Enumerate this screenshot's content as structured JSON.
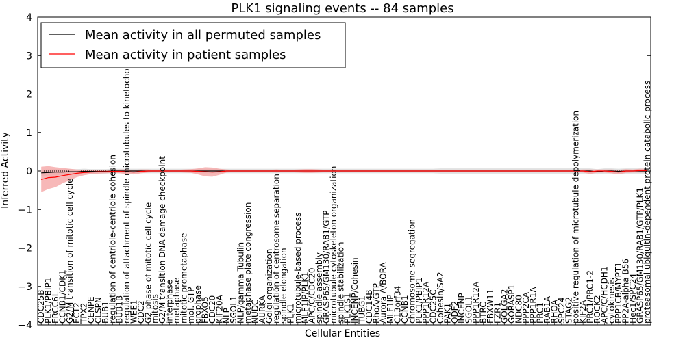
{
  "chart_data": {
    "type": "line",
    "title": "PLK1 signaling events -- 84 samples",
    "xlabel": "Cellular Entities",
    "ylabel": "Inferred Activity",
    "ylim": [
      -4,
      4
    ],
    "yticks": [
      -4,
      -3,
      -2,
      -1,
      0,
      1,
      2,
      3,
      4
    ],
    "ytick_labels": [
      "−4",
      "−3",
      "−2",
      "−1",
      "0",
      "1",
      "2",
      "3",
      "4"
    ],
    "legend_position": "top-left",
    "categories": [
      "CDC25B",
      "PLK1/PBIP1",
      "ERCC6L",
      "CCNB1/CDK1",
      "G2/M transition of mitotic cell cycle",
      "ECT2",
      "TPX2",
      "CENPE",
      "CLSPN",
      "BUB1",
      "regulation of centriole-centriole cohesion",
      "BUB1B",
      "regulation of attachment of spindle microtubules to kinetochore",
      "WEE1",
      "CDC2",
      "G2 phase of mitotic cell cycle",
      "mitosis",
      "G2/M transition DNA damage checkpoint",
      "interphase",
      "metaphase",
      "mitotic prometaphase",
      "mol. GTP",
      "prophase",
      "FBXO5",
      "CDC20",
      "KIF20A",
      "NLP",
      "SGOL1",
      "NLP/gamma Tubulin",
      "metaphase plate congression",
      "NUDC",
      "AURKA",
      "Golgi organization",
      "regulation of centrosome separation",
      "spindle elongation",
      "PLK1",
      "microtubule-based process",
      "MLF1IP/PLK1",
      "APC/C/CDC20",
      "spindle assembly",
      "GRASP65/GM130/RAB1/GTP",
      "microtubule cytoskeleton organization",
      "spindle stabilization",
      "PLK1S1",
      "INCENP/Cohesin",
      "TUBG1",
      "CDC14B",
      "RhoA/GTP",
      "Aurora A/BORA",
      "MLF1IP",
      "C13orf34",
      "CCNB1",
      "chromosome segregation",
      "PLK1/PBIP1",
      "PPP1R12A",
      "CDC25C",
      "Cohesin/SA2",
      "PAK1",
      "ODF2",
      "INCENP",
      "SGOL1",
      "PPP1R12A",
      "BTRC",
      "FBXW11",
      "FZR1",
      "GOLGA2",
      "GORASP1",
      "NDC80",
      "PPP2CA",
      "PPP1R1A",
      "PRC1",
      "RAB1A",
      "RHOA",
      "SPC24",
      "STAG2",
      "positive regulation of microtubule depolymerization",
      "KIF2A",
      "PRC1/PRC1-2",
      "ROCK2",
      "APC/C/HCDH1",
      "cytokinesis",
      "PPP1CB/MYPT1",
      "PP2A-alpha B56",
      "Hec1/SPC24",
      "GRASP65/GM130/RAB1/GTP/PLK1",
      "proteasomal ubiquitin-dependent protein catabolic process"
    ],
    "series": [
      {
        "name": "Mean activity in all permuted samples",
        "color": "#000000",
        "band_color": "#c8c8c8",
        "values": [
          -0.05,
          -0.04,
          -0.03,
          -0.03,
          -0.02,
          -0.02,
          -0.01,
          -0.01,
          -0.01,
          -0.01,
          0,
          0,
          0,
          0,
          0,
          0,
          0,
          0,
          0,
          0,
          0,
          0,
          0,
          0,
          0,
          0,
          0,
          0,
          0,
          0,
          0,
          0,
          0,
          0,
          0,
          0,
          0,
          0,
          0,
          0,
          0,
          0,
          0,
          0,
          0,
          0,
          0,
          0,
          0,
          0,
          0,
          0,
          0,
          0,
          0,
          0,
          0,
          0,
          0,
          0,
          0,
          0,
          0,
          0,
          0,
          0,
          0,
          0,
          0,
          0,
          0,
          0,
          0,
          0,
          0,
          0,
          0,
          0,
          -0.02,
          0,
          0,
          -0.01,
          0,
          0,
          0,
          0
        ],
        "band_half_width": [
          0.08,
          0.08,
          0.08,
          0.07,
          0.07,
          0.07,
          0.07,
          0.06,
          0.06,
          0.06,
          0.06,
          0.06,
          0.06,
          0.06,
          0.06,
          0.06,
          0.06,
          0.06,
          0.06,
          0.06,
          0.06,
          0.06,
          0.06,
          0.06,
          0.06,
          0.06,
          0.06,
          0.06,
          0.06,
          0.06,
          0.06,
          0.06,
          0.06,
          0.06,
          0.06,
          0.06,
          0.06,
          0.06,
          0.06,
          0.06,
          0.06,
          0.06,
          0.06,
          0.06,
          0.06,
          0.06,
          0.06,
          0.06,
          0.06,
          0.06,
          0.06,
          0.06,
          0.06,
          0.06,
          0.06,
          0.06,
          0.07,
          0.07,
          0.07,
          0.07,
          0.07,
          0.07,
          0.07,
          0.07,
          0.07,
          0.07,
          0.07,
          0.07,
          0.07,
          0.07,
          0.07,
          0.07,
          0.07,
          0.07,
          0.07,
          0.07,
          0.07,
          0.07,
          0.07,
          0.07,
          0.07,
          0.07,
          0.07,
          0.07,
          0.07,
          0.07
        ]
      },
      {
        "name": "Mean activity in patient samples",
        "color": "#ff0000",
        "band_color": "#f4a0a0",
        "values": [
          -0.22,
          -0.17,
          -0.16,
          -0.12,
          -0.09,
          -0.06,
          -0.04,
          -0.03,
          -0.02,
          -0.02,
          -0.01,
          -0.01,
          -0.02,
          -0.03,
          -0.01,
          0,
          0,
          0,
          0,
          0,
          0,
          0,
          -0.01,
          -0.02,
          -0.03,
          -0.02,
          0,
          0,
          0,
          0,
          0,
          0,
          0,
          0,
          0,
          0,
          0,
          0,
          0,
          0,
          0,
          0,
          0,
          0,
          0,
          0,
          0,
          0,
          0,
          0,
          0,
          0,
          0,
          0,
          0,
          0,
          0,
          0,
          0,
          0,
          0,
          0,
          0,
          0,
          0,
          0,
          0,
          0,
          0,
          0,
          0,
          0,
          0,
          0,
          0,
          0,
          0,
          -0.02,
          0,
          0,
          -0.01,
          -0.03,
          0,
          0,
          0.01,
          0.01
        ],
        "band_half_width": [
          0.33,
          0.3,
          0.26,
          0.2,
          0.15,
          0.1,
          0.07,
          0.05,
          0.05,
          0.04,
          0.04,
          0.05,
          0.06,
          0.06,
          0.05,
          0.04,
          0.03,
          0.03,
          0.03,
          0.03,
          0.04,
          0.05,
          0.08,
          0.12,
          0.12,
          0.08,
          0.04,
          0.03,
          0.03,
          0.03,
          0.03,
          0.03,
          0.03,
          0.04,
          0.03,
          0.03,
          0.04,
          0.05,
          0.05,
          0.04,
          0.03,
          0.03,
          0.03,
          0.03,
          0.03,
          0.03,
          0.03,
          0.03,
          0.03,
          0.03,
          0.03,
          0.03,
          0.03,
          0.03,
          0.03,
          0.03,
          0.03,
          0.03,
          0.03,
          0.03,
          0.03,
          0.03,
          0.03,
          0.03,
          0.03,
          0.03,
          0.03,
          0.03,
          0.03,
          0.03,
          0.03,
          0.03,
          0.03,
          0.03,
          0.03,
          0.03,
          0.04,
          0.06,
          0.04,
          0.04,
          0.05,
          0.06,
          0.05,
          0.04,
          0.05,
          0.05
        ]
      }
    ],
    "reference_line": 0
  }
}
